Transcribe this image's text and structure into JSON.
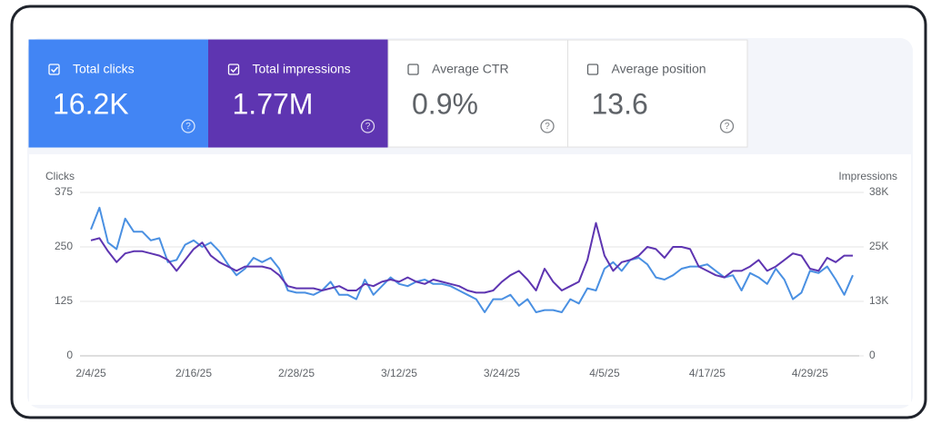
{
  "cards": [
    {
      "label": "Total clicks",
      "value": "16.2K",
      "checked": true,
      "background": "#4285f4",
      "color": "#ffffff"
    },
    {
      "label": "Total impressions",
      "value": "1.77M",
      "checked": true,
      "background": "#5e35b1",
      "color": "#ffffff"
    },
    {
      "label": "Average CTR",
      "value": "0.9%",
      "checked": false,
      "background": "#ffffff",
      "color": "#5f6368"
    },
    {
      "label": "Average position",
      "value": "13.6",
      "checked": false,
      "background": "#ffffff",
      "color": "#5f6368"
    }
  ],
  "chart_data": {
    "type": "line",
    "y_label": "Clicks",
    "y2_label": "Impressions",
    "categories": [
      "2/4/25",
      null,
      null,
      null,
      null,
      null,
      null,
      null,
      null,
      null,
      null,
      null,
      "2/16/25",
      null,
      null,
      null,
      null,
      null,
      null,
      null,
      null,
      null,
      null,
      null,
      "2/28/25",
      null,
      null,
      null,
      null,
      null,
      null,
      null,
      null,
      null,
      null,
      null,
      "3/12/25",
      null,
      null,
      null,
      null,
      null,
      null,
      null,
      null,
      null,
      null,
      null,
      "3/24/25",
      null,
      null,
      null,
      null,
      null,
      null,
      null,
      null,
      null,
      null,
      null,
      "4/5/25",
      null,
      null,
      null,
      null,
      null,
      null,
      null,
      null,
      null,
      null,
      null,
      "4/17/25",
      null,
      null,
      null,
      null,
      null,
      null,
      null,
      null,
      null,
      null,
      null,
      "4/29/25",
      null,
      null,
      null,
      null,
      null
    ],
    "series": [
      {
        "color": "#4a90e2",
        "axis": "y",
        "values": [
          290,
          340,
          260,
          245,
          315,
          285,
          285,
          265,
          270,
          215,
          220,
          255,
          265,
          250,
          260,
          240,
          210,
          185,
          200,
          225,
          215,
          225,
          200,
          150,
          145,
          145,
          140,
          150,
          170,
          140,
          140,
          130,
          175,
          140,
          160,
          180,
          165,
          160,
          170,
          175,
          165,
          165,
          160,
          150,
          140,
          130,
          100,
          130,
          130,
          140,
          115,
          130,
          100,
          105,
          105,
          100,
          130,
          120,
          155,
          150,
          200,
          215,
          195,
          220,
          225,
          210,
          180,
          175,
          185,
          200,
          205,
          205,
          210,
          195,
          180,
          185,
          150,
          190,
          180,
          165,
          200,
          175,
          130,
          145,
          195,
          190,
          205,
          175,
          140,
          185
        ]
      },
      {
        "color": "#5e35b1",
        "axis": "y2",
        "values": [
          26500,
          27000,
          24000,
          21500,
          23500,
          24000,
          24000,
          23500,
          23000,
          22000,
          19500,
          22000,
          24500,
          26000,
          23000,
          21500,
          20500,
          19500,
          20500,
          20500,
          20500,
          20000,
          18500,
          16000,
          15500,
          15500,
          15500,
          15000,
          15500,
          16000,
          15000,
          15000,
          16500,
          16000,
          17000,
          17500,
          17000,
          18000,
          17000,
          16500,
          17500,
          17000,
          16500,
          16000,
          15000,
          14500,
          14500,
          15000,
          17000,
          18500,
          19500,
          17500,
          15000,
          20000,
          17000,
          15000,
          16000,
          17000,
          22000,
          30500,
          23000,
          19500,
          21500,
          22000,
          23000,
          25000,
          24500,
          22500,
          25000,
          25000,
          24500,
          20500,
          19500,
          18500,
          18000,
          19500,
          19500,
          20500,
          22000,
          19500,
          20500,
          22000,
          23500,
          23000,
          20000,
          19500,
          22500,
          21500,
          23000,
          23000
        ]
      }
    ],
    "ylim": [
      0,
      375
    ],
    "yticks": [
      0,
      125,
      250,
      375
    ],
    "y2lim": [
      0,
      37500
    ],
    "y2ticks": [
      0,
      {
        "value": 12500,
        "label": "13K"
      },
      {
        "value": 25000,
        "label": "25K"
      },
      {
        "value": 37500,
        "label": "38K"
      }
    ],
    "grid": true
  }
}
